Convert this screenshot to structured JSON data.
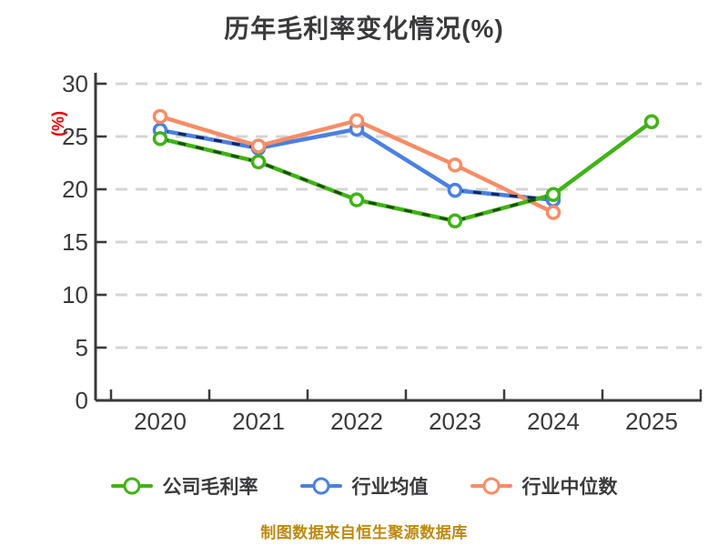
{
  "title": "历年毛利率变化情况(%)",
  "source_note": "制图数据来自恒生聚源数据库",
  "colors": {
    "background": "#ffffff",
    "title_text": "#3a3a3c",
    "axis": "#3a3a3c",
    "tick_label": "#3a3a3c",
    "grid": "#d4d4d4",
    "y_axis_label": "#e60000",
    "source_note": "#bd8a0e",
    "legend_text": "#3a3a3c",
    "green": "#40b317",
    "green_dark": "#1b4d07",
    "blue": "#4a80e1",
    "blue_dark": "#14255a",
    "orange": "#f78d66"
  },
  "chart_data": {
    "type": "line",
    "title": "历年毛利率变化情况(%)",
    "ylabel": "(%)",
    "xlabel": "",
    "x": [
      "2020",
      "2021",
      "2022",
      "2023",
      "2024",
      "2025"
    ],
    "ylim": [
      0,
      30
    ],
    "yticks": [
      0,
      5,
      10,
      15,
      20,
      25,
      30
    ],
    "grid": true,
    "grid_style": "dashed",
    "legend_position": "bottom",
    "marker": "circle-white-fill",
    "series": [
      {
        "key": "company-gross-margin",
        "name": "公司毛利率",
        "color_key": "green",
        "values": [
          24.8,
          22.6,
          19.0,
          17.0,
          19.5,
          26.4
        ],
        "dash_overlay_segments": [
          [
            0,
            4
          ]
        ]
      },
      {
        "key": "industry-mean",
        "name": "行业均值",
        "color_key": "blue",
        "values": [
          25.6,
          23.9,
          25.7,
          19.9,
          19.0,
          null
        ],
        "dash_overlay_segments": [
          [
            0,
            1
          ],
          [
            3,
            4
          ]
        ]
      },
      {
        "key": "industry-median",
        "name": "行业中位数",
        "color_key": "orange",
        "values": [
          26.9,
          24.1,
          26.5,
          22.3,
          17.8,
          null
        ],
        "dash_overlay_segments": []
      }
    ]
  }
}
